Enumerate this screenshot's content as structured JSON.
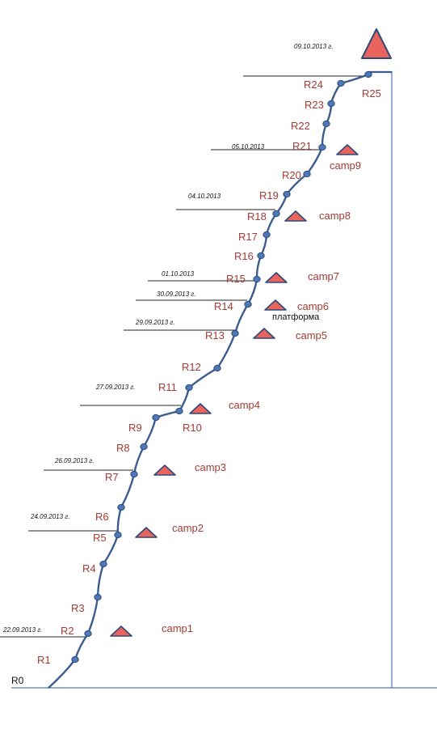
{
  "colors": {
    "route": "#3b5c8c",
    "node": "#4f78b8",
    "node_outline": "#2d4a7a",
    "label": "#a23b35",
    "triangle_fill": "#e8645c",
    "triangle_outline": "#2d4a7a",
    "axis": "#4f78b8",
    "date_line": "#222222"
  },
  "start_label": "R0",
  "points": [
    {
      "label": "R1"
    },
    {
      "label": "R2"
    },
    {
      "label": "R3"
    },
    {
      "label": "R4"
    },
    {
      "label": "R5"
    },
    {
      "label": "R6"
    },
    {
      "label": "R7"
    },
    {
      "label": "R8"
    },
    {
      "label": "R9"
    },
    {
      "label": "R10"
    },
    {
      "label": "R11"
    },
    {
      "label": "R12"
    },
    {
      "label": "R13"
    },
    {
      "label": "R14"
    },
    {
      "label": "R15"
    },
    {
      "label": "R16"
    },
    {
      "label": "R17"
    },
    {
      "label": "R18"
    },
    {
      "label": "R19"
    },
    {
      "label": "R20"
    },
    {
      "label": "R21"
    },
    {
      "label": "R22"
    },
    {
      "label": "R23"
    },
    {
      "label": "R24"
    },
    {
      "label": "R25"
    }
  ],
  "dates": [
    {
      "text": "22.09.2013 г."
    },
    {
      "text": "24.09.2013 г."
    },
    {
      "text": "26.09.2013 г."
    },
    {
      "text": "27.09.2013 г."
    },
    {
      "text": "29.09.2013 г."
    },
    {
      "text": "30.09.2013 г."
    },
    {
      "text": "01.10.2013"
    },
    {
      "text": "04.10.2013"
    },
    {
      "text": "05.10.2013"
    },
    {
      "text": "09.10.2013 г."
    }
  ],
  "camps": [
    {
      "label": "camp1"
    },
    {
      "label": "camp2"
    },
    {
      "label": "camp3"
    },
    {
      "label": "camp4"
    },
    {
      "label": "camp5"
    },
    {
      "label": "camp6"
    },
    {
      "label": "camp7"
    },
    {
      "label": "camp8"
    },
    {
      "label": "camp9"
    }
  ],
  "platform_label": "платформа"
}
